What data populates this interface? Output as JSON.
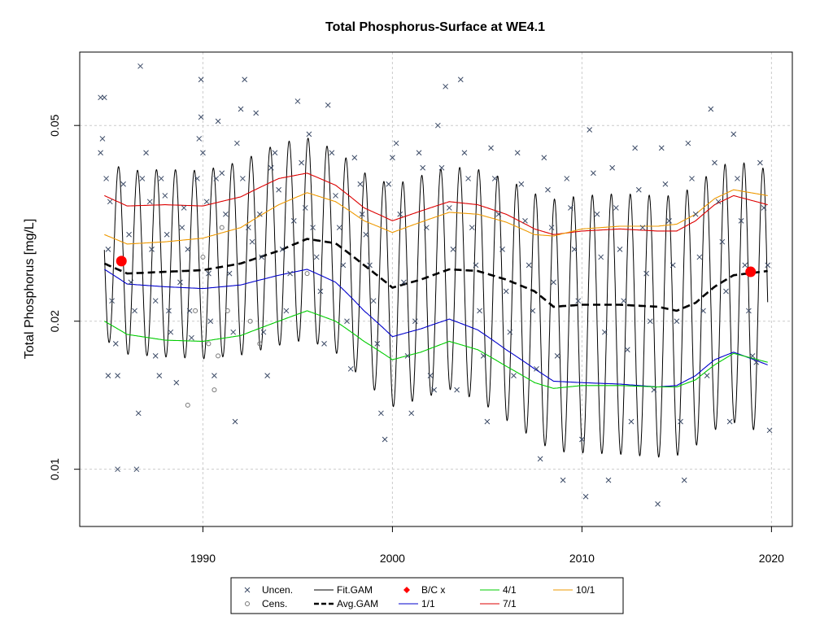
{
  "chart_data": {
    "type": "line",
    "title": "Total Phosphorus-Surface at WE4.1",
    "xlabel": "",
    "ylabel": "Total Phosphorus [mg/L]",
    "y_scale": "log",
    "xlim": [
      1983.5,
      2021.1
    ],
    "ylim": [
      0.00765,
      0.0705
    ],
    "grid": true,
    "x_ticks": [
      1990,
      2000,
      2010,
      2020
    ],
    "x_tick_labels": [
      "1990",
      "2000",
      "2010",
      "2020"
    ],
    "y_ticks": [
      0.01,
      0.02,
      0.05
    ],
    "y_tick_labels": [
      "0.01",
      "0.02",
      "0.05"
    ],
    "legend_position": "bottom-center",
    "colors": {
      "uncensored": "#3b4a66",
      "censored": "#777777",
      "fit_gam": "#000000",
      "avg_gam": "#000000",
      "bc_marker": "#ff0000",
      "jan1": "#0000cc",
      "apr1": "#00cc00",
      "jul1": "#dd0000",
      "oct1": "#ee9900"
    },
    "legend": [
      {
        "label": "Uncen.",
        "symbol": "x",
        "color": "#3b4a66"
      },
      {
        "label": "Cens.",
        "symbol": "circle",
        "color": "#777777"
      },
      {
        "label": "Fit.GAM",
        "symbol": "line",
        "color": "#000000"
      },
      {
        "label": "Avg.GAM",
        "symbol": "dashed",
        "color": "#000000"
      },
      {
        "label": "B/C x",
        "symbol": "diamond",
        "color": "#ff0000"
      },
      {
        "label": "1/1",
        "symbol": "line",
        "color": "#0000cc"
      },
      {
        "label": "4/1",
        "symbol": "line",
        "color": "#00cc00"
      },
      {
        "label": "7/1",
        "symbol": "line",
        "color": "#dd0000"
      },
      {
        "label": "10/1",
        "symbol": "line",
        "color": "#ee9900"
      }
    ],
    "seasonal_fit_period": 1.0,
    "series": [
      {
        "name": "Avg.GAM",
        "style": "dashed",
        "x": [
          1984.8,
          1986,
          1988,
          1990,
          1992,
          1994,
          1995.5,
          1997,
          1998.5,
          2000,
          2001.5,
          2003,
          2004.5,
          2006,
          2007.5,
          2008.5,
          2010,
          2012,
          2014,
          2015,
          2016,
          2017,
          2018,
          2019.8
        ],
        "values": [
          0.0262,
          0.025,
          0.0252,
          0.0254,
          0.0262,
          0.0278,
          0.0294,
          0.0288,
          0.026,
          0.0234,
          0.0243,
          0.0255,
          0.0253,
          0.0243,
          0.023,
          0.0214,
          0.0216,
          0.0216,
          0.0214,
          0.021,
          0.0218,
          0.0235,
          0.0248,
          0.0253
        ]
      },
      {
        "name": "1/1",
        "x": [
          1984.8,
          1986,
          1988,
          1990,
          1992,
          1994,
          1995.5,
          1997,
          1998.5,
          2000,
          2001.5,
          2003,
          2004.5,
          2006,
          2007.5,
          2008.5,
          2010,
          2012,
          2014,
          2015,
          2016,
          2017,
          2018,
          2019.8
        ],
        "values": [
          0.0255,
          0.0238,
          0.0235,
          0.0233,
          0.0237,
          0.0248,
          0.0255,
          0.024,
          0.021,
          0.0186,
          0.0193,
          0.0202,
          0.0192,
          0.0175,
          0.016,
          0.0151,
          0.015,
          0.0149,
          0.0147,
          0.0148,
          0.0155,
          0.0167,
          0.0173,
          0.0163
        ]
      },
      {
        "name": "4/1",
        "x": [
          1984.8,
          1986,
          1988,
          1990,
          1992,
          1994,
          1995.5,
          1997,
          1998.5,
          2000,
          2001.5,
          2003,
          2004.5,
          2006,
          2007.5,
          2008.5,
          2010,
          2012,
          2014,
          2015,
          2016,
          2017,
          2018,
          2019.8
        ],
        "values": [
          0.02,
          0.0188,
          0.0183,
          0.0182,
          0.0187,
          0.02,
          0.021,
          0.02,
          0.0182,
          0.0167,
          0.0173,
          0.0182,
          0.0175,
          0.0162,
          0.015,
          0.0146,
          0.0148,
          0.0148,
          0.0147,
          0.0147,
          0.0152,
          0.0163,
          0.0172,
          0.0165
        ]
      },
      {
        "name": "7/1",
        "x": [
          1984.8,
          1986,
          1988,
          1990,
          1992,
          1994,
          1995.5,
          1997,
          1998.5,
          2000,
          2001.5,
          2003,
          2004.5,
          2006,
          2007.5,
          2008.5,
          2010,
          2012,
          2014,
          2015,
          2016,
          2017,
          2018,
          2019.8
        ],
        "values": [
          0.036,
          0.0343,
          0.0345,
          0.0343,
          0.0358,
          0.039,
          0.04,
          0.0378,
          0.034,
          0.032,
          0.0335,
          0.035,
          0.0345,
          0.033,
          0.0308,
          0.03,
          0.0305,
          0.0308,
          0.0305,
          0.0305,
          0.032,
          0.0345,
          0.036,
          0.0345
        ]
      },
      {
        "name": "10/1",
        "x": [
          1984.8,
          1986,
          1988,
          1990,
          1992,
          1994,
          1995.5,
          1997,
          1998.5,
          2000,
          2001.5,
          2003,
          2004.5,
          2006,
          2007.5,
          2008.5,
          2010,
          2012,
          2014,
          2015,
          2016,
          2017,
          2018,
          2019.8
        ],
        "values": [
          0.03,
          0.0287,
          0.029,
          0.0295,
          0.031,
          0.0345,
          0.0365,
          0.035,
          0.032,
          0.0303,
          0.0318,
          0.0333,
          0.033,
          0.0318,
          0.03,
          0.0298,
          0.0308,
          0.0312,
          0.0312,
          0.0315,
          0.033,
          0.0355,
          0.037,
          0.036
        ]
      }
    ],
    "bc_points": [
      {
        "x": 1985.7,
        "y": 0.0265
      },
      {
        "x": 2018.9,
        "y": 0.0252
      }
    ],
    "uncensored_points": [
      [
        1984.6,
        0.057
      ],
      [
        1984.8,
        0.057
      ],
      [
        1984.7,
        0.047
      ],
      [
        1984.6,
        0.044
      ],
      [
        1984.9,
        0.039
      ],
      [
        1985.1,
        0.035
      ],
      [
        1985.0,
        0.028
      ],
      [
        1985.2,
        0.022
      ],
      [
        1985.0,
        0.0155
      ],
      [
        1985.4,
        0.018
      ],
      [
        1985.5,
        0.0155
      ],
      [
        1985.5,
        0.01
      ],
      [
        1985.8,
        0.038
      ],
      [
        1986.1,
        0.03
      ],
      [
        1986.2,
        0.024
      ],
      [
        1986.4,
        0.021
      ],
      [
        1986.5,
        0.01
      ],
      [
        1986.6,
        0.013
      ],
      [
        1986.7,
        0.066
      ],
      [
        1986.8,
        0.039
      ],
      [
        1987.0,
        0.044
      ],
      [
        1987.2,
        0.035
      ],
      [
        1987.3,
        0.028
      ],
      [
        1987.5,
        0.022
      ],
      [
        1987.5,
        0.017
      ],
      [
        1987.7,
        0.0155
      ],
      [
        1987.8,
        0.039
      ],
      [
        1988.0,
        0.036
      ],
      [
        1988.1,
        0.03
      ],
      [
        1988.2,
        0.021
      ],
      [
        1988.3,
        0.019
      ],
      [
        1988.6,
        0.015
      ],
      [
        1988.8,
        0.024
      ],
      [
        1988.9,
        0.031
      ],
      [
        1989.0,
        0.034
      ],
      [
        1989.2,
        0.028
      ],
      [
        1989.3,
        0.021
      ],
      [
        1989.4,
        0.0185
      ],
      [
        1989.7,
        0.039
      ],
      [
        1989.8,
        0.047
      ],
      [
        1989.9,
        0.052
      ],
      [
        1989.9,
        0.062
      ],
      [
        1990.0,
        0.044
      ],
      [
        1990.2,
        0.035
      ],
      [
        1990.3,
        0.025
      ],
      [
        1990.4,
        0.02
      ],
      [
        1990.6,
        0.0155
      ],
      [
        1990.7,
        0.039
      ],
      [
        1990.8,
        0.051
      ],
      [
        1991.0,
        0.04
      ],
      [
        1991.2,
        0.033
      ],
      [
        1991.4,
        0.025
      ],
      [
        1991.6,
        0.019
      ],
      [
        1991.7,
        0.0125
      ],
      [
        1991.8,
        0.046
      ],
      [
        1992.0,
        0.054
      ],
      [
        1992.1,
        0.039
      ],
      [
        1992.2,
        0.062
      ],
      [
        1992.4,
        0.031
      ],
      [
        1992.6,
        0.029
      ],
      [
        1992.8,
        0.053
      ],
      [
        1993.0,
        0.033
      ],
      [
        1993.1,
        0.027
      ],
      [
        1993.2,
        0.019
      ],
      [
        1993.4,
        0.0155
      ],
      [
        1993.6,
        0.041
      ],
      [
        1993.8,
        0.044
      ],
      [
        1994.0,
        0.037
      ],
      [
        1994.2,
        0.028
      ],
      [
        1994.4,
        0.021
      ],
      [
        1994.6,
        0.025
      ],
      [
        1994.8,
        0.032
      ],
      [
        1995.0,
        0.056
      ],
      [
        1995.2,
        0.042
      ],
      [
        1995.4,
        0.034
      ],
      [
        1995.6,
        0.048
      ],
      [
        1995.8,
        0.031
      ],
      [
        1996.0,
        0.027
      ],
      [
        1996.2,
        0.023
      ],
      [
        1996.4,
        0.018
      ],
      [
        1996.6,
        0.055
      ],
      [
        1996.8,
        0.044
      ],
      [
        1997.0,
        0.036
      ],
      [
        1997.2,
        0.031
      ],
      [
        1997.4,
        0.026
      ],
      [
        1997.6,
        0.02
      ],
      [
        1997.8,
        0.016
      ],
      [
        1998.0,
        0.043
      ],
      [
        1998.3,
        0.038
      ],
      [
        1998.4,
        0.033
      ],
      [
        1998.6,
        0.03
      ],
      [
        1998.8,
        0.026
      ],
      [
        1999.0,
        0.022
      ],
      [
        1999.2,
        0.018
      ],
      [
        1999.4,
        0.013
      ],
      [
        1999.6,
        0.0115
      ],
      [
        1999.8,
        0.038
      ],
      [
        2000.0,
        0.043
      ],
      [
        2000.2,
        0.046
      ],
      [
        2000.4,
        0.033
      ],
      [
        2000.6,
        0.024
      ],
      [
        2000.8,
        0.017
      ],
      [
        2001.0,
        0.013
      ],
      [
        2001.2,
        0.02
      ],
      [
        2001.4,
        0.044
      ],
      [
        2001.6,
        0.041
      ],
      [
        2001.8,
        0.031
      ],
      [
        2002.0,
        0.0155
      ],
      [
        2002.2,
        0.0145
      ],
      [
        2002.4,
        0.05
      ],
      [
        2002.6,
        0.041
      ],
      [
        2002.8,
        0.06
      ],
      [
        2003.0,
        0.034
      ],
      [
        2003.2,
        0.028
      ],
      [
        2003.4,
        0.0145
      ],
      [
        2003.6,
        0.062
      ],
      [
        2003.8,
        0.044
      ],
      [
        2004.0,
        0.039
      ],
      [
        2004.2,
        0.031
      ],
      [
        2004.4,
        0.026
      ],
      [
        2004.6,
        0.021
      ],
      [
        2004.8,
        0.017
      ],
      [
        2005.0,
        0.0125
      ],
      [
        2005.2,
        0.045
      ],
      [
        2005.4,
        0.039
      ],
      [
        2005.6,
        0.033
      ],
      [
        2005.8,
        0.028
      ],
      [
        2006.0,
        0.023
      ],
      [
        2006.2,
        0.019
      ],
      [
        2006.4,
        0.0155
      ],
      [
        2006.6,
        0.044
      ],
      [
        2006.8,
        0.038
      ],
      [
        2007.0,
        0.032
      ],
      [
        2007.2,
        0.026
      ],
      [
        2007.4,
        0.021
      ],
      [
        2007.6,
        0.016
      ],
      [
        2007.8,
        0.0105
      ],
      [
        2008.0,
        0.043
      ],
      [
        2008.2,
        0.037
      ],
      [
        2008.4,
        0.031
      ],
      [
        2008.5,
        0.024
      ],
      [
        2008.7,
        0.017
      ],
      [
        2009.0,
        0.0095
      ],
      [
        2009.2,
        0.039
      ],
      [
        2009.4,
        0.034
      ],
      [
        2009.6,
        0.028
      ],
      [
        2009.8,
        0.022
      ],
      [
        2010.0,
        0.0115
      ],
      [
        2010.2,
        0.0088
      ],
      [
        2010.4,
        0.049
      ],
      [
        2010.6,
        0.04
      ],
      [
        2010.8,
        0.033
      ],
      [
        2011.0,
        0.027
      ],
      [
        2011.2,
        0.019
      ],
      [
        2011.4,
        0.0095
      ],
      [
        2011.6,
        0.041
      ],
      [
        2011.8,
        0.034
      ],
      [
        2012.0,
        0.028
      ],
      [
        2012.2,
        0.022
      ],
      [
        2012.4,
        0.0175
      ],
      [
        2012.6,
        0.0125
      ],
      [
        2012.8,
        0.045
      ],
      [
        2013.0,
        0.037
      ],
      [
        2013.2,
        0.031
      ],
      [
        2013.4,
        0.025
      ],
      [
        2013.6,
        0.02
      ],
      [
        2013.8,
        0.0145
      ],
      [
        2014.0,
        0.0085
      ],
      [
        2014.2,
        0.045
      ],
      [
        2014.4,
        0.038
      ],
      [
        2014.6,
        0.032
      ],
      [
        2014.8,
        0.026
      ],
      [
        2015.0,
        0.02
      ],
      [
        2015.2,
        0.0125
      ],
      [
        2015.4,
        0.0095
      ],
      [
        2015.6,
        0.046
      ],
      [
        2015.8,
        0.039
      ],
      [
        2016.0,
        0.033
      ],
      [
        2016.2,
        0.027
      ],
      [
        2016.4,
        0.021
      ],
      [
        2016.6,
        0.0155
      ],
      [
        2016.8,
        0.054
      ],
      [
        2017.0,
        0.042
      ],
      [
        2017.2,
        0.035
      ],
      [
        2017.4,
        0.029
      ],
      [
        2017.6,
        0.023
      ],
      [
        2017.8,
        0.0125
      ],
      [
        2018.0,
        0.048
      ],
      [
        2018.2,
        0.039
      ],
      [
        2018.4,
        0.032
      ],
      [
        2018.6,
        0.026
      ],
      [
        2018.8,
        0.021
      ],
      [
        2019.0,
        0.017
      ],
      [
        2019.2,
        0.0165
      ],
      [
        2019.4,
        0.042
      ],
      [
        2019.6,
        0.034
      ],
      [
        2019.8,
        0.026
      ],
      [
        2019.9,
        0.012
      ]
    ],
    "censored_points": [
      [
        1989.2,
        0.0135
      ],
      [
        1989.6,
        0.021
      ],
      [
        1990.0,
        0.027
      ],
      [
        1990.3,
        0.018
      ],
      [
        1990.6,
        0.0145
      ],
      [
        1990.8,
        0.017
      ],
      [
        1991.0,
        0.031
      ],
      [
        1991.3,
        0.021
      ],
      [
        1992.5,
        0.02
      ],
      [
        1993.0,
        0.018
      ],
      [
        1995.5,
        0.025
      ]
    ]
  }
}
